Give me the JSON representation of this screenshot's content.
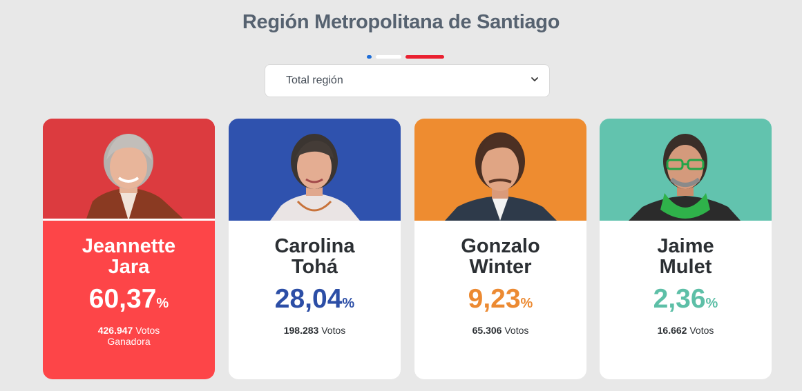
{
  "header": {
    "title": "Región Metropolitana de Santiago"
  },
  "filter": {
    "selected": "Total región"
  },
  "candidates": [
    {
      "first_name": "Jeannette",
      "last_name": "Jara",
      "percent": "60,37",
      "percent_unit": "%",
      "votes": "426.947",
      "votes_label": "Votos",
      "winner_label": "Ganadora",
      "band_color": "#dc3b3f",
      "accent_color": "#ffffff"
    },
    {
      "first_name": "Carolina",
      "last_name": "Tohá",
      "percent": "28,04",
      "percent_unit": "%",
      "votes": "198.283",
      "votes_label": "Votos",
      "band_color": "#2f52ae",
      "accent_color": "#2c4ea6"
    },
    {
      "first_name": "Gonzalo",
      "last_name": "Winter",
      "percent": "9,23",
      "percent_unit": "%",
      "votes": "65.306",
      "votes_label": "Votos",
      "band_color": "#ee8c30",
      "accent_color": "#ec8a32"
    },
    {
      "first_name": "Jaime",
      "last_name": "Mulet",
      "percent": "2,36",
      "percent_unit": "%",
      "votes": "16.662",
      "votes_label": "Votos",
      "band_color": "#62c3ae",
      "accent_color": "#5dbfa7"
    }
  ]
}
